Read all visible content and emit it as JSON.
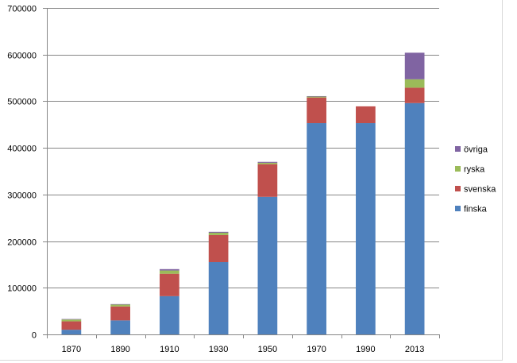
{
  "chart_data": {
    "type": "bar",
    "stacked": true,
    "categories": [
      "1870",
      "1890",
      "1910",
      "1930",
      "1950",
      "1970",
      "1990",
      "2013"
    ],
    "series": [
      {
        "name": "finska",
        "color": "#4f81bd",
        "values": [
          10000,
          30000,
          82000,
          155000,
          295000,
          453000,
          453000,
          496000
        ]
      },
      {
        "name": "svenska",
        "color": "#c0504d",
        "values": [
          18000,
          30000,
          48000,
          58000,
          70000,
          55000,
          36000,
          33000
        ]
      },
      {
        "name": "ryska",
        "color": "#9bbb59",
        "values": [
          4000,
          4000,
          7000,
          5000,
          3000,
          2000,
          0,
          18000
        ]
      },
      {
        "name": "övriga",
        "color": "#8064a2",
        "values": [
          1000,
          1000,
          3000,
          2000,
          2000,
          1000,
          0,
          57000
        ]
      }
    ],
    "ylim": [
      0,
      700000
    ],
    "yticks": [
      "0",
      "100000",
      "200000",
      "300000",
      "400000",
      "500000",
      "600000",
      "700000"
    ],
    "grid": true,
    "legend_position": "right",
    "title": "",
    "xlabel": "",
    "ylabel": ""
  }
}
